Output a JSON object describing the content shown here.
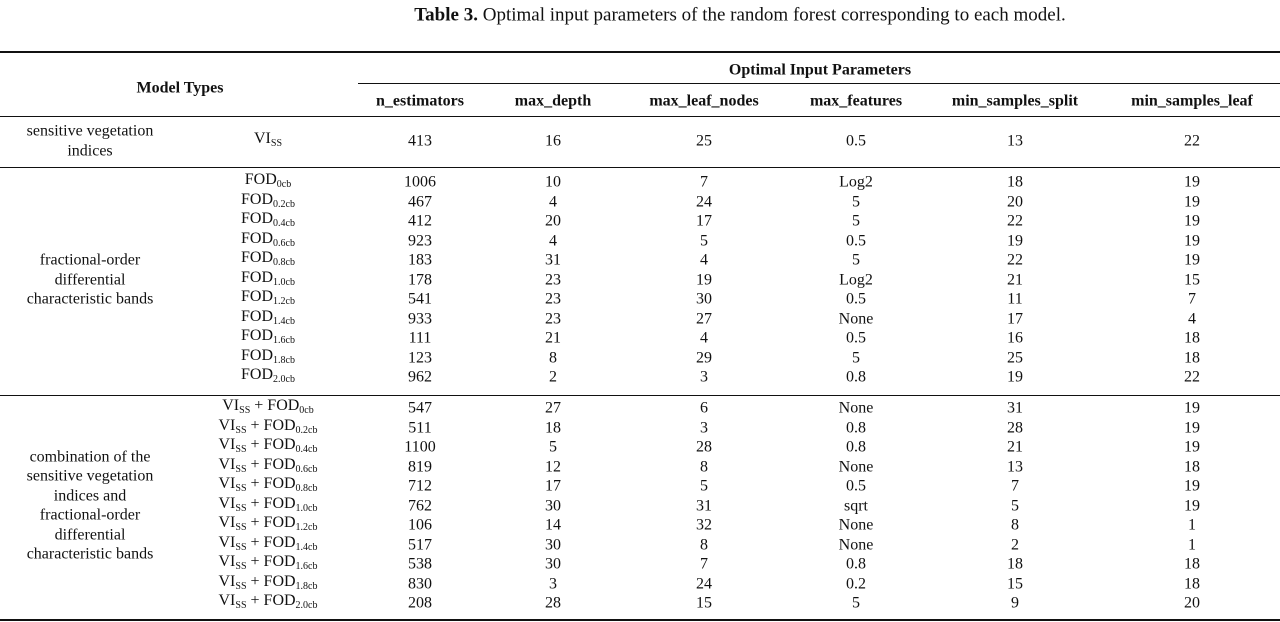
{
  "caption": {
    "label": "Table 3.",
    "text": "Optimal input parameters of the random forest corresponding to each model."
  },
  "table": {
    "header": {
      "model_types": "Model Types",
      "group": "Optimal Input Parameters",
      "columns": [
        "n_estimators",
        "max_depth",
        "max_leaf_nodes",
        "max_features",
        "min_samples_split",
        "min_samples_leaf"
      ]
    },
    "groups": [
      {
        "name": [
          "sensitive vegetation",
          "indices"
        ],
        "rows": [
          {
            "model": [
              "VI",
              "SS"
            ],
            "values": [
              413,
              16,
              25,
              0.5,
              13,
              22
            ]
          }
        ]
      },
      {
        "name": [
          "fractional-order",
          "differential",
          "characteristic bands"
        ],
        "rows": [
          {
            "model": [
              "FOD",
              "0cb"
            ],
            "values": [
              1006,
              10,
              7,
              "Log2",
              18,
              19
            ]
          },
          {
            "model": [
              "FOD",
              "0.2cb"
            ],
            "values": [
              467,
              4,
              24,
              5,
              20,
              19
            ]
          },
          {
            "model": [
              "FOD",
              "0.4cb"
            ],
            "values": [
              412,
              20,
              17,
              5,
              22,
              19
            ]
          },
          {
            "model": [
              "FOD",
              "0.6cb"
            ],
            "values": [
              923,
              4,
              5,
              0.5,
              19,
              19
            ]
          },
          {
            "model": [
              "FOD",
              "0.8cb"
            ],
            "values": [
              183,
              31,
              4,
              5,
              22,
              19
            ]
          },
          {
            "model": [
              "FOD",
              "1.0cb"
            ],
            "values": [
              178,
              23,
              19,
              "Log2",
              21,
              15
            ]
          },
          {
            "model": [
              "FOD",
              "1.2cb"
            ],
            "values": [
              541,
              23,
              30,
              0.5,
              11,
              7
            ]
          },
          {
            "model": [
              "FOD",
              "1.4cb"
            ],
            "values": [
              933,
              23,
              27,
              "None",
              17,
              4
            ]
          },
          {
            "model": [
              "FOD",
              "1.6cb"
            ],
            "values": [
              111,
              21,
              4,
              0.5,
              16,
              18
            ]
          },
          {
            "model": [
              "FOD",
              "1.8cb"
            ],
            "values": [
              123,
              8,
              29,
              5,
              25,
              18
            ]
          },
          {
            "model": [
              "FOD",
              "2.0cb"
            ],
            "values": [
              962,
              2,
              3,
              0.8,
              19,
              22
            ]
          }
        ]
      },
      {
        "name": [
          "combination of the",
          "sensitive vegetation",
          "indices and",
          "fractional-order",
          "differential",
          "characteristic bands"
        ],
        "rows": [
          {
            "model": [
              "VI",
              "SS",
              " + FOD",
              "0cb"
            ],
            "values": [
              547,
              27,
              6,
              "None",
              31,
              19
            ]
          },
          {
            "model": [
              "VI",
              "SS",
              " + FOD",
              "0.2cb"
            ],
            "values": [
              511,
              18,
              3,
              0.8,
              28,
              19
            ]
          },
          {
            "model": [
              "VI",
              "SS",
              " + FOD",
              "0.4cb"
            ],
            "values": [
              1100,
              5,
              28,
              0.8,
              21,
              19
            ]
          },
          {
            "model": [
              "VI",
              "SS",
              " + FOD",
              "0.6cb"
            ],
            "values": [
              819,
              12,
              8,
              "None",
              13,
              18
            ]
          },
          {
            "model": [
              "VI",
              "SS",
              " + FOD",
              "0.8cb"
            ],
            "values": [
              712,
              17,
              5,
              0.5,
              7,
              19
            ]
          },
          {
            "model": [
              "VI",
              "SS",
              " + FOD",
              "1.0cb"
            ],
            "values": [
              762,
              30,
              31,
              "sqrt",
              5,
              19
            ]
          },
          {
            "model": [
              "VI",
              "SS",
              " + FOD",
              "1.2cb"
            ],
            "values": [
              106,
              14,
              32,
              "None",
              8,
              1
            ]
          },
          {
            "model": [
              "VI",
              "SS",
              " + FOD",
              "1.4cb"
            ],
            "values": [
              517,
              30,
              8,
              "None",
              2,
              1
            ]
          },
          {
            "model": [
              "VI",
              "SS",
              " + FOD",
              "1.6cb"
            ],
            "values": [
              538,
              30,
              7,
              0.8,
              18,
              18
            ]
          },
          {
            "model": [
              "VI",
              "SS",
              " + FOD",
              "1.8cb"
            ],
            "values": [
              830,
              3,
              24,
              0.2,
              15,
              18
            ]
          },
          {
            "model": [
              "VI",
              "SS",
              " + FOD",
              "2.0cb"
            ],
            "values": [
              208,
              28,
              15,
              5,
              9,
              20
            ]
          }
        ]
      }
    ]
  }
}
